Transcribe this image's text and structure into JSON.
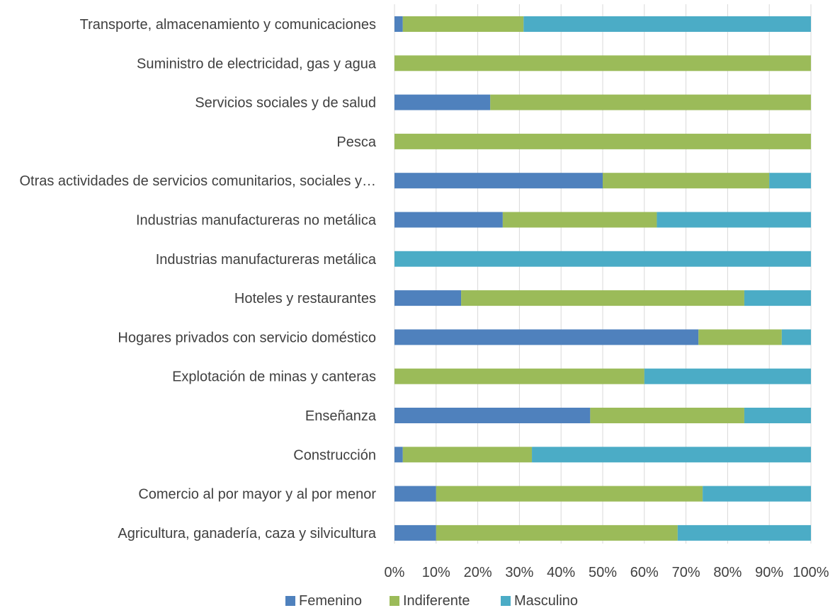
{
  "chart_data": {
    "type": "bar",
    "orientation": "horizontal",
    "stacked": "percent",
    "title": "",
    "xlabel": "",
    "ylabel": "",
    "xlim": [
      0,
      100
    ],
    "x_ticks": [
      "0%",
      "10%",
      "20%",
      "30%",
      "40%",
      "50%",
      "60%",
      "70%",
      "80%",
      "90%",
      "100%"
    ],
    "grid": true,
    "legend_position": "bottom",
    "categories": [
      "Transporte, almacenamiento y comunicaciones",
      "Suministro de electricidad, gas y agua",
      "Servicios sociales y de salud",
      "Pesca",
      "Otras actividades de servicios comunitarios, sociales y…",
      "Industrias manufactureras no metálica",
      "Industrias manufactureras metálica",
      "Hoteles y restaurantes",
      "Hogares privados con servicio doméstico",
      "Explotación de minas y canteras",
      "Enseñanza",
      "Construcción",
      "Comercio al por mayor y al por menor",
      "Agricultura, ganadería, caza y silvicultura"
    ],
    "series": [
      {
        "name": "Femenino",
        "color": "#4f81bd",
        "values": [
          2,
          0,
          23,
          0,
          50,
          26,
          0,
          16,
          73,
          0,
          47,
          2,
          10,
          10
        ]
      },
      {
        "name": "Indiferente",
        "color": "#9bbb59",
        "values": [
          29,
          100,
          77,
          100,
          40,
          37,
          0,
          68,
          20,
          60,
          37,
          31,
          64,
          58
        ]
      },
      {
        "name": "Masculino",
        "color": "#4bacc6",
        "values": [
          69,
          0,
          0,
          0,
          10,
          37,
          100,
          16,
          7,
          40,
          16,
          67,
          26,
          32
        ]
      }
    ]
  }
}
